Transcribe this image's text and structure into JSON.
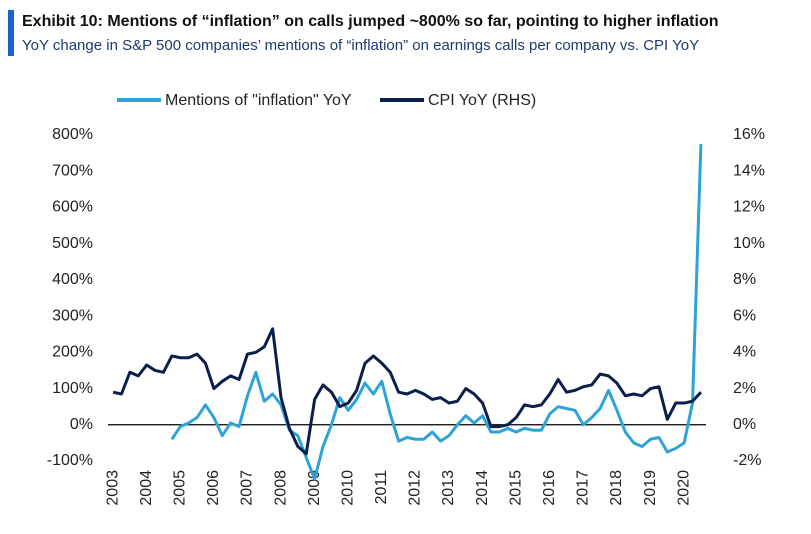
{
  "chart_data": {
    "type": "line",
    "title": "Exhibit 10: Mentions of “inflation” on calls jumped ~800% so far, pointing to higher inflation",
    "subtitle": "YoY change in S&P 500 companies’ mentions of “inflation” on earnings calls per company vs. CPI YoY",
    "x": [
      2003,
      2003.25,
      2003.5,
      2003.75,
      2004,
      2004.25,
      2004.5,
      2004.75,
      2005,
      2005.25,
      2005.5,
      2005.75,
      2006,
      2006.25,
      2006.5,
      2006.75,
      2007,
      2007.25,
      2007.5,
      2007.75,
      2008,
      2008.25,
      2008.5,
      2008.75,
      2009,
      2009.25,
      2009.5,
      2009.75,
      2010,
      2010.25,
      2010.5,
      2010.75,
      2011,
      2011.25,
      2011.5,
      2011.75,
      2012,
      2012.25,
      2012.5,
      2012.75,
      2013,
      2013.25,
      2013.5,
      2013.75,
      2014,
      2014.25,
      2014.5,
      2014.75,
      2015,
      2015.25,
      2015.5,
      2015.75,
      2016,
      2016.25,
      2016.5,
      2016.75,
      2017,
      2017.25,
      2017.5,
      2017.75,
      2018,
      2018.25,
      2018.5,
      2018.75,
      2019,
      2019.25,
      2019.5,
      2019.75,
      2020,
      2020.25,
      2020.5
    ],
    "series": [
      {
        "name": "Mentions of \"inflation\" YoY",
        "color": "#2ea3d8",
        "values": [
          null,
          null,
          null,
          null,
          null,
          null,
          null,
          -40,
          -5,
          5,
          20,
          55,
          20,
          -30,
          5,
          -5,
          80,
          145,
          65,
          85,
          55,
          -15,
          -30,
          -90,
          -150,
          -60,
          0,
          75,
          40,
          70,
          115,
          85,
          120,
          30,
          -45,
          -35,
          -40,
          -40,
          -20,
          -45,
          -30,
          0,
          25,
          5,
          25,
          -20,
          -20,
          -10,
          -20,
          -10,
          -15,
          -15,
          30,
          50,
          45,
          40,
          0,
          20,
          45,
          95,
          40,
          -20,
          -50,
          -60,
          -40,
          -35,
          -75,
          -65,
          -50,
          60,
          775
        ]
      },
      {
        "name": "CPI YoY (RHS)",
        "color": "#0b1f4e",
        "axis": "y2",
        "values": [
          1.8,
          1.7,
          2.9,
          2.7,
          3.3,
          3.0,
          2.9,
          3.8,
          3.7,
          3.7,
          3.9,
          3.4,
          2.0,
          2.4,
          2.7,
          2.5,
          3.9,
          4.0,
          4.3,
          5.3,
          1.5,
          -0.2,
          -1.2,
          -1.6,
          1.4,
          2.2,
          1.8,
          1.0,
          1.2,
          1.9,
          3.4,
          3.8,
          3.4,
          2.9,
          1.8,
          1.7,
          1.9,
          1.7,
          1.4,
          1.5,
          1.2,
          1.3,
          2.0,
          1.7,
          1.2,
          -0.1,
          -0.1,
          0.0,
          0.4,
          1.1,
          1.0,
          1.1,
          1.7,
          2.5,
          1.8,
          1.9,
          2.1,
          2.2,
          2.8,
          2.7,
          2.3,
          1.6,
          1.7,
          1.6,
          2.0,
          2.1,
          0.3,
          1.2,
          1.2,
          1.3,
          1.8
        ]
      }
    ],
    "xlim": [
      2002.7,
      2020.8
    ],
    "xticks": [
      2003,
      2004,
      2005,
      2006,
      2007,
      2008,
      2009,
      2010,
      2011,
      2012,
      2013,
      2014,
      2015,
      2016,
      2017,
      2018,
      2019,
      2020
    ],
    "ylim": [
      -100,
      800
    ],
    "yticks": [
      {
        "value": -100,
        "label": "-100%"
      },
      {
        "value": 0,
        "label": "0%"
      },
      {
        "value": 100,
        "label": "100%"
      },
      {
        "value": 200,
        "label": "200%"
      },
      {
        "value": 300,
        "label": "300%"
      },
      {
        "value": 400,
        "label": "400%"
      },
      {
        "value": 500,
        "label": "500%"
      },
      {
        "value": 600,
        "label": "600%"
      },
      {
        "value": 700,
        "label": "700%"
      },
      {
        "value": 800,
        "label": "800%"
      }
    ],
    "y2lim": [
      -2,
      16
    ],
    "y2ticks": [
      {
        "value": -2,
        "label": "-2%"
      },
      {
        "value": 0,
        "label": "0%"
      },
      {
        "value": 2,
        "label": "2%"
      },
      {
        "value": 4,
        "label": "4%"
      },
      {
        "value": 6,
        "label": "6%"
      },
      {
        "value": 8,
        "label": "8%"
      },
      {
        "value": 10,
        "label": "10%"
      },
      {
        "value": 12,
        "label": "12%"
      },
      {
        "value": 14,
        "label": "14%"
      },
      {
        "value": 16,
        "label": "16%"
      }
    ],
    "legend": "top"
  }
}
